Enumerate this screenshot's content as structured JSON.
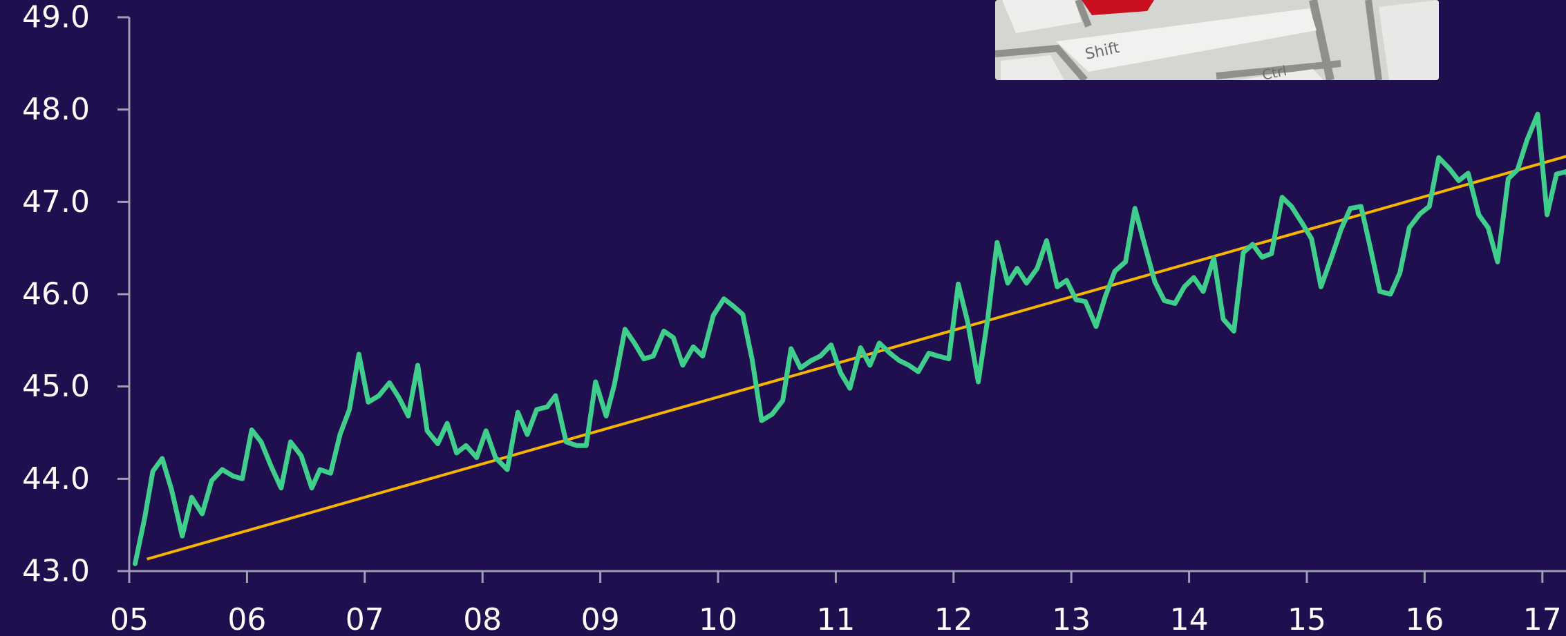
{
  "chart_data": {
    "type": "line",
    "title": "",
    "xlabel": "",
    "ylabel": "",
    "ylim": [
      43.0,
      49.0
    ],
    "xlim": [
      2005.0,
      2017.6
    ],
    "y_ticks": [
      43.0,
      44.0,
      45.0,
      46.0,
      47.0,
      48.0,
      49.0
    ],
    "y_tick_labels": [
      "43.0",
      "44.0",
      "45.0",
      "46.0",
      "47.0",
      "48.0",
      "49.0"
    ],
    "x_ticks": [
      2005,
      2006,
      2007,
      2008,
      2009,
      2010,
      2011,
      2012,
      2013,
      2014,
      2015,
      2016,
      2017
    ],
    "x_tick_labels": [
      "05",
      "06",
      "07",
      "08",
      "09",
      "10",
      "11",
      "12",
      "13",
      "14",
      "15",
      "16",
      "17"
    ],
    "grid": false,
    "legend": "none",
    "colors": {
      "background": "#1f0f4f",
      "series": "#3fce8c",
      "trend": "#f7b500",
      "text": "#ffffff",
      "axis": "#9e9eb4"
    },
    "series": [
      {
        "values": [
          [
            2005.05,
            43.08
          ],
          [
            2005.13,
            43.57
          ],
          [
            2005.2,
            44.08
          ],
          [
            2005.28,
            44.22
          ],
          [
            2005.36,
            43.88
          ],
          [
            2005.45,
            43.38
          ],
          [
            2005.53,
            43.8
          ],
          [
            2005.62,
            43.62
          ],
          [
            2005.7,
            43.98
          ],
          [
            2005.79,
            44.1
          ],
          [
            2005.88,
            44.03
          ],
          [
            2005.96,
            44.0
          ],
          [
            2006.04,
            44.53
          ],
          [
            2006.12,
            44.4
          ],
          [
            2006.21,
            44.12
          ],
          [
            2006.29,
            43.9
          ],
          [
            2006.37,
            44.4
          ],
          [
            2006.46,
            44.25
          ],
          [
            2006.55,
            43.9
          ],
          [
            2006.62,
            44.1
          ],
          [
            2006.71,
            44.06
          ],
          [
            2006.79,
            44.48
          ],
          [
            2006.87,
            44.75
          ],
          [
            2006.95,
            45.35
          ],
          [
            2007.03,
            44.83
          ],
          [
            2007.12,
            44.9
          ],
          [
            2007.21,
            45.04
          ],
          [
            2007.29,
            44.88
          ],
          [
            2007.37,
            44.68
          ],
          [
            2007.45,
            45.23
          ],
          [
            2007.53,
            44.52
          ],
          [
            2007.62,
            44.38
          ],
          [
            2007.7,
            44.6
          ],
          [
            2007.78,
            44.28
          ],
          [
            2007.86,
            44.36
          ],
          [
            2007.95,
            44.23
          ],
          [
            2008.03,
            44.52
          ],
          [
            2008.11,
            44.23
          ],
          [
            2008.21,
            44.1
          ],
          [
            2008.3,
            44.72
          ],
          [
            2008.38,
            44.48
          ],
          [
            2008.46,
            44.75
          ],
          [
            2008.55,
            44.78
          ],
          [
            2008.62,
            44.9
          ],
          [
            2008.71,
            44.4
          ],
          [
            2008.8,
            44.36
          ],
          [
            2008.88,
            44.36
          ],
          [
            2008.96,
            45.05
          ],
          [
            2009.05,
            44.68
          ],
          [
            2009.12,
            45.02
          ],
          [
            2009.21,
            45.62
          ],
          [
            2009.29,
            45.47
          ],
          [
            2009.37,
            45.3
          ],
          [
            2009.45,
            45.33
          ],
          [
            2009.54,
            45.6
          ],
          [
            2009.62,
            45.53
          ],
          [
            2009.7,
            45.23
          ],
          [
            2009.79,
            45.43
          ],
          [
            2009.87,
            45.33
          ],
          [
            2009.96,
            45.77
          ],
          [
            2010.05,
            45.95
          ],
          [
            2010.13,
            45.87
          ],
          [
            2010.21,
            45.78
          ],
          [
            2010.29,
            45.29
          ],
          [
            2010.37,
            44.63
          ],
          [
            2010.46,
            44.7
          ],
          [
            2010.55,
            44.85
          ],
          [
            2010.62,
            45.41
          ],
          [
            2010.7,
            45.2
          ],
          [
            2010.79,
            45.28
          ],
          [
            2010.87,
            45.33
          ],
          [
            2010.96,
            45.45
          ],
          [
            2011.04,
            45.15
          ],
          [
            2011.12,
            44.98
          ],
          [
            2011.21,
            45.42
          ],
          [
            2011.29,
            45.23
          ],
          [
            2011.37,
            45.47
          ],
          [
            2011.46,
            45.36
          ],
          [
            2011.54,
            45.28
          ],
          [
            2011.62,
            45.23
          ],
          [
            2011.7,
            45.16
          ],
          [
            2011.79,
            45.36
          ],
          [
            2011.87,
            45.33
          ],
          [
            2011.96,
            45.3
          ],
          [
            2012.04,
            46.11
          ],
          [
            2012.12,
            45.7
          ],
          [
            2012.21,
            45.05
          ],
          [
            2012.29,
            45.73
          ],
          [
            2012.37,
            46.56
          ],
          [
            2012.46,
            46.12
          ],
          [
            2012.54,
            46.28
          ],
          [
            2012.62,
            46.12
          ],
          [
            2012.71,
            46.28
          ],
          [
            2012.79,
            46.58
          ],
          [
            2012.88,
            46.08
          ],
          [
            2012.96,
            46.15
          ],
          [
            2013.04,
            45.94
          ],
          [
            2013.12,
            45.92
          ],
          [
            2013.21,
            45.65
          ],
          [
            2013.29,
            45.98
          ],
          [
            2013.37,
            46.25
          ],
          [
            2013.46,
            46.35
          ],
          [
            2013.54,
            46.93
          ],
          [
            2013.62,
            46.55
          ],
          [
            2013.71,
            46.13
          ],
          [
            2013.79,
            45.93
          ],
          [
            2013.88,
            45.9
          ],
          [
            2013.96,
            46.08
          ],
          [
            2014.04,
            46.18
          ],
          [
            2014.12,
            46.03
          ],
          [
            2014.21,
            46.39
          ],
          [
            2014.29,
            45.73
          ],
          [
            2014.38,
            45.6
          ],
          [
            2014.46,
            46.45
          ],
          [
            2014.54,
            46.54
          ],
          [
            2014.62,
            46.4
          ],
          [
            2014.7,
            46.44
          ],
          [
            2014.79,
            47.05
          ],
          [
            2014.87,
            46.95
          ],
          [
            2014.96,
            46.77
          ],
          [
            2015.04,
            46.6
          ],
          [
            2015.12,
            46.08
          ],
          [
            2015.21,
            46.4
          ],
          [
            2015.29,
            46.7
          ],
          [
            2015.37,
            46.93
          ],
          [
            2015.46,
            46.95
          ],
          [
            2015.54,
            46.5
          ],
          [
            2015.62,
            46.03
          ],
          [
            2015.71,
            46.0
          ],
          [
            2015.79,
            46.23
          ],
          [
            2015.87,
            46.72
          ],
          [
            2015.96,
            46.87
          ],
          [
            2016.04,
            46.95
          ],
          [
            2016.12,
            47.48
          ],
          [
            2016.21,
            47.36
          ],
          [
            2016.29,
            47.23
          ],
          [
            2016.37,
            47.31
          ],
          [
            2016.46,
            46.86
          ],
          [
            2016.54,
            46.72
          ],
          [
            2016.62,
            46.35
          ],
          [
            2016.71,
            47.25
          ],
          [
            2016.79,
            47.35
          ],
          [
            2016.87,
            47.67
          ],
          [
            2016.96,
            47.95
          ],
          [
            2017.04,
            46.86
          ],
          [
            2017.12,
            47.3
          ],
          [
            2017.21,
            47.33
          ],
          [
            2017.29,
            46.9
          ],
          [
            2017.37,
            46.95
          ],
          [
            2017.46,
            46.8
          ],
          [
            2017.54,
            46.97
          ],
          [
            2017.6,
            47.2
          ]
        ]
      }
    ],
    "trend_line": {
      "start": [
        2005.15,
        43.13
      ],
      "end": [
        2017.6,
        47.62
      ]
    }
  }
}
